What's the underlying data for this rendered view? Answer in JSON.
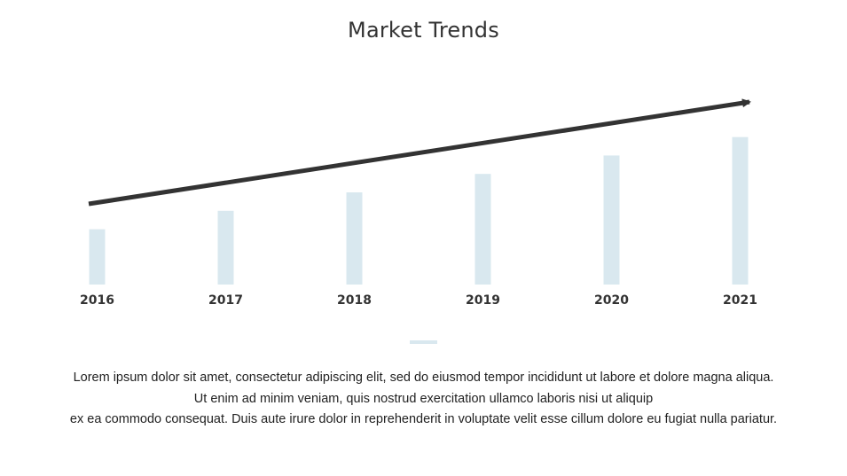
{
  "slide": {
    "title": "Market Trends",
    "description_lines": [
      "Lorem ipsum dolor sit amet, consectetur adipiscing elit, sed do eiusmod tempor incididunt ut labore et dolore magna aliqua.",
      "Ut enim ad minim veniam, quis nostrud exercitation ullamco laboris nisi ut aliquip",
      "ex ea commodo consequat. Duis aute irure dolor in reprehenderit in voluptate velit esse cillum dolore eu fugiat nulla pariatur."
    ]
  },
  "colors": {
    "bar": "#d9e8ef",
    "arrow": "#333333",
    "text": "#333333"
  },
  "chart_data": {
    "type": "bar",
    "title": "Market Trends",
    "categories": [
      "2016",
      "2017",
      "2018",
      "2019",
      "2020",
      "2021"
    ],
    "values": [
      3,
      4,
      5,
      6,
      7,
      8
    ],
    "ylim": [
      0,
      8
    ],
    "xlabel": "",
    "ylabel": "",
    "grid": false,
    "legend": "none",
    "annotations": [
      {
        "type": "trend-arrow",
        "direction": "up"
      }
    ]
  }
}
